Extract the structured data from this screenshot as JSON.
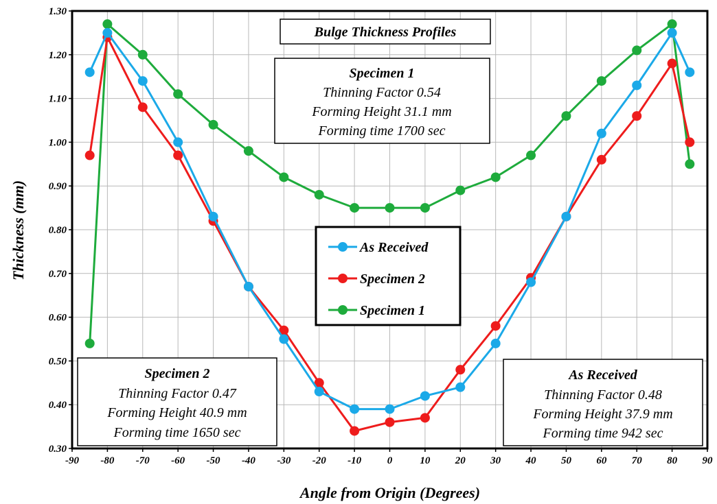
{
  "chart_data": {
    "type": "line",
    "title": "Bulge Thickness Profiles",
    "xlabel": "Angle from Origin (Degrees)",
    "ylabel": "Thickness (mm)",
    "xlim": [
      -90,
      90
    ],
    "ylim": [
      0.3,
      1.3
    ],
    "x_ticks": [
      "-90",
      "-80",
      "-70",
      "-60",
      "-50",
      "-40",
      "-30",
      "-20",
      "-10",
      "0",
      "10",
      "20",
      "30",
      "40",
      "50",
      "60",
      "70",
      "80",
      "90"
    ],
    "y_ticks": [
      "0.30",
      "0.40",
      "0.50",
      "0.60",
      "0.70",
      "0.80",
      "0.90",
      "1.00",
      "1.10",
      "1.20",
      "1.30"
    ],
    "grid": true,
    "legend_position": "center",
    "series": [
      {
        "name": "As Received",
        "color": "#1ba9e8",
        "x": [
          -85,
          -80,
          -70,
          -60,
          -50,
          -40,
          -30,
          -20,
          -10,
          0,
          10,
          20,
          30,
          40,
          50,
          60,
          70,
          80,
          85
        ],
        "y": [
          1.16,
          1.25,
          1.14,
          1.0,
          0.83,
          0.67,
          0.55,
          0.43,
          0.39,
          0.39,
          0.42,
          0.44,
          0.54,
          0.68,
          0.83,
          1.02,
          1.13,
          1.25,
          1.16
        ]
      },
      {
        "name": "Specimen 2",
        "color": "#ee1c1c",
        "x": [
          -85,
          -80,
          -70,
          -60,
          -50,
          -40,
          -30,
          -20,
          -10,
          0,
          10,
          20,
          30,
          40,
          50,
          60,
          70,
          80,
          85
        ],
        "y": [
          0.97,
          1.24,
          1.08,
          0.97,
          0.82,
          0.67,
          0.57,
          0.45,
          0.34,
          0.36,
          0.37,
          0.48,
          0.58,
          0.69,
          0.83,
          0.96,
          1.06,
          1.18,
          1.0
        ]
      },
      {
        "name": "Specimen 1",
        "color": "#1eab3c",
        "x": [
          -85,
          -80,
          -70,
          -60,
          -50,
          -40,
          -30,
          -20,
          -10,
          0,
          10,
          20,
          30,
          40,
          50,
          60,
          70,
          80,
          85
        ],
        "y": [
          0.54,
          1.27,
          1.2,
          1.11,
          1.04,
          0.98,
          0.92,
          0.88,
          0.85,
          0.85,
          0.85,
          0.89,
          0.92,
          0.97,
          1.06,
          1.14,
          1.21,
          1.27,
          0.95
        ]
      }
    ],
    "annotations": [
      {
        "title": "Specimen 1",
        "lines": [
          "Thinning Factor  0.54",
          "Forming Height  31.1 mm",
          "Forming time  1700 sec"
        ]
      },
      {
        "title": "Specimen 2",
        "lines": [
          "Thinning Factor  0.47",
          "Forming Height  40.9 mm",
          "Forming time  1650 sec"
        ]
      },
      {
        "title": "As Received",
        "lines": [
          "Thinning Factor  0.48",
          "Forming Height 37.9 mm",
          "Forming time   942 sec"
        ]
      }
    ]
  }
}
